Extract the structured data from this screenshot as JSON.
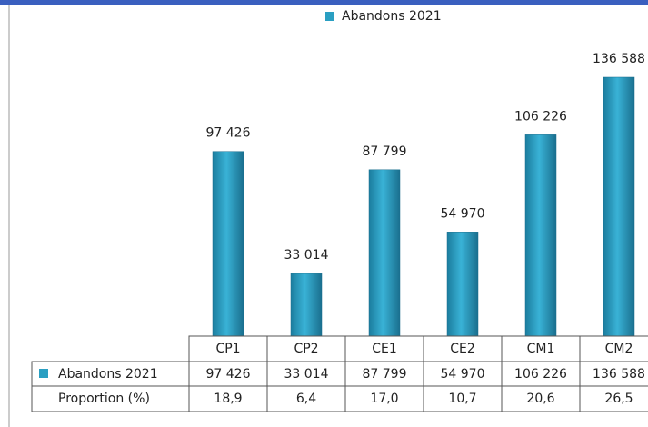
{
  "chart_data": {
    "type": "bar",
    "categories": [
      "CP1",
      "CP2",
      "CE1",
      "CE2",
      "CM1",
      "CM2"
    ],
    "series": [
      {
        "name": "Abandons 2021",
        "color": "#2a9fc2",
        "values": [
          97426,
          33014,
          87799,
          54970,
          106226,
          136588
        ],
        "value_labels": [
          "97 426",
          "33 014",
          "87 799",
          "54 970",
          "106 226",
          "136 588"
        ]
      }
    ],
    "table_row": {
      "name": "Proportion (%)",
      "values": [
        18.9,
        6.4,
        17.0,
        10.7,
        20.6,
        26.5
      ],
      "value_labels": [
        "18,9",
        "6,4",
        "17,0",
        "10,7",
        "20,6",
        "26,5"
      ]
    },
    "legend": "top"
  }
}
